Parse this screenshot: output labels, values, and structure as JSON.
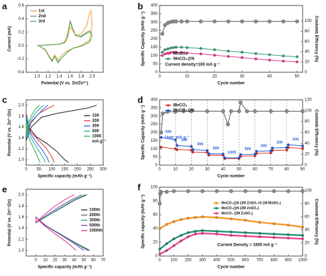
{
  "chart_data": [
    {
      "type": "line",
      "panel": "a",
      "xlabel": "Potential (V vs. Zn/Zn²⁺)",
      "ylabel": "Current (mA)",
      "xlim": [
        0.8,
        2.2
      ],
      "xticks": [
        {
          "value": 1.0,
          "label": "1.0"
        },
        1.2,
        1.4,
        1.6,
        1.8,
        {
          "value": 2.0,
          "label": "2.0"
        }
      ],
      "ylim": [
        -0.4,
        0.6
      ],
      "yticks": [
        -0.4,
        -0.2,
        {
          "value": 0,
          "label": "0.0"
        },
        0.2,
        0.4,
        0.6
      ],
      "series": [
        {
          "name": "1st",
          "color": "#f39c34",
          "x": [
            1.0,
            1.2,
            1.4,
            1.5,
            1.55,
            1.6,
            1.65,
            1.7,
            1.8,
            1.9,
            1.95,
            1.98,
            2.0,
            1.95,
            1.8,
            1.65,
            1.55,
            1.45,
            1.38,
            1.32,
            1.27,
            1.22,
            1.15,
            1.05,
            1.0
          ],
          "values": [
            0,
            0.01,
            0.02,
            0.04,
            0.1,
            0.28,
            0.22,
            0.16,
            0.17,
            0.3,
            0.48,
            0.52,
            0.3,
            0.08,
            0,
            -0.04,
            -0.08,
            -0.14,
            -0.22,
            -0.14,
            -0.22,
            -0.16,
            -0.06,
            -0.01,
            0
          ]
        },
        {
          "name": "2nd",
          "color": "#7f7f7f",
          "x": [
            1.0,
            1.2,
            1.4,
            1.5,
            1.55,
            1.6,
            1.65,
            1.7,
            1.8,
            1.9,
            1.95,
            1.98,
            2.0,
            1.95,
            1.8,
            1.65,
            1.55,
            1.45,
            1.38,
            1.32,
            1.27,
            1.22,
            1.15,
            1.05,
            1.0
          ],
          "values": [
            0,
            0.01,
            0.02,
            0.05,
            0.15,
            0.37,
            0.25,
            0.15,
            0.14,
            0.2,
            0.22,
            0.2,
            0.15,
            0.05,
            -0.01,
            -0.04,
            -0.1,
            -0.18,
            -0.26,
            -0.16,
            -0.24,
            -0.17,
            -0.07,
            -0.01,
            0
          ]
        },
        {
          "name": "3rd",
          "color": "#4caf50",
          "x": [
            1.0,
            1.2,
            1.4,
            1.5,
            1.55,
            1.6,
            1.65,
            1.7,
            1.8,
            1.9,
            1.95,
            1.98,
            2.0,
            1.95,
            1.8,
            1.65,
            1.55,
            1.45,
            1.38,
            1.32,
            1.27,
            1.22,
            1.15,
            1.05,
            1.0
          ],
          "values": [
            0,
            0.01,
            0.02,
            0.05,
            0.16,
            0.35,
            0.24,
            0.15,
            0.13,
            0.18,
            0.2,
            0.19,
            0.15,
            0.05,
            -0.01,
            -0.04,
            -0.1,
            -0.18,
            -0.25,
            -0.16,
            -0.23,
            -0.17,
            -0.07,
            -0.01,
            0
          ]
        }
      ]
    },
    {
      "type": "line",
      "panel": "b",
      "xlabel": "Cycle number",
      "ylabel": "Specific Capacity (mAh g⁻¹)",
      "y2label": "Coulomb Efficiency (%)",
      "annotation": "Current density=100 mA g⁻¹",
      "xlim": [
        0,
        52
      ],
      "xticks": [
        0,
        10,
        20,
        30,
        40,
        50
      ],
      "ylim": [
        0,
        400
      ],
      "yticks": [
        0,
        50,
        100,
        150,
        200,
        250,
        300,
        350,
        400
      ],
      "y2lim": [
        0,
        130
      ],
      "y2ticks": [
        0,
        20,
        40,
        60,
        80,
        100
      ],
      "x": [
        1,
        2,
        3,
        4,
        5,
        6,
        8,
        10,
        15,
        20,
        25,
        30,
        35,
        40,
        45,
        50
      ],
      "series": [
        {
          "name": "MnCO₃",
          "color": "#e8338a",
          "values": [
            100,
            110,
            115,
            118,
            120,
            120,
            118,
            116,
            110,
            102,
            95,
            88,
            80,
            73,
            67,
            62
          ]
        },
        {
          "name": "MnCO₃@N",
          "color": "#2e9e7a",
          "values": [
            120,
            135,
            140,
            145,
            148,
            150,
            150,
            148,
            143,
            135,
            127,
            120,
            112,
            105,
            98,
            93
          ]
        },
        {
          "color": "#555555",
          "axis": "y2",
          "values": [
            75,
            92,
            96,
            98,
            99,
            99,
            99,
            99,
            99,
            99,
            99,
            99,
            99,
            99,
            99,
            99
          ]
        }
      ]
    },
    {
      "type": "line",
      "panel": "c",
      "xlabel": "Specific capacity (mAh g⁻¹)",
      "ylabel": "Potential (V vs. Zn²⁺/Zn)",
      "legend_unit": "mA g⁻¹",
      "xlim": [
        0,
        300
      ],
      "xticks": [
        0,
        50,
        100,
        150,
        200,
        250,
        300
      ],
      "ylim": [
        0.9,
        2.1
      ],
      "yticks": [
        {
          "value": 1.0,
          "label": "1.0"
        },
        1.2,
        1.4,
        1.6,
        1.8,
        {
          "value": 2.0,
          "label": "2.0"
        }
      ],
      "series": [
        {
          "name": "100",
          "color": "#222222",
          "x": [
            165,
            150,
            120,
            80,
            40,
            10,
            0,
            0,
            20,
            60,
            120,
            180,
            240,
            275
          ],
          "values": [
            0.95,
            1.0,
            1.15,
            1.3,
            1.42,
            1.6,
            1.85,
            1.35,
            1.6,
            1.78,
            1.85,
            1.9,
            1.95,
            2.0
          ]
        },
        {
          "name": "200",
          "color": "#e0302a",
          "x": [
            110,
            100,
            80,
            50,
            20,
            5,
            0,
            0,
            20,
            50,
            80,
            110
          ],
          "values": [
            0.95,
            1.05,
            1.2,
            1.35,
            1.5,
            1.65,
            1.85,
            1.4,
            1.7,
            1.85,
            1.93,
            2.0
          ]
        },
        {
          "name": "300",
          "color": "#2a5ad8",
          "x": [
            90,
            80,
            60,
            35,
            15,
            0,
            0,
            15,
            40,
            65,
            85
          ],
          "values": [
            0.95,
            1.05,
            1.2,
            1.35,
            1.5,
            1.8,
            1.4,
            1.65,
            1.8,
            1.92,
            2.0
          ]
        },
        {
          "name": "500",
          "color": "#1aa3a3",
          "x": [
            75,
            65,
            45,
            25,
            10,
            0,
            0,
            15,
            35,
            55,
            70
          ],
          "values": [
            0.95,
            1.05,
            1.2,
            1.35,
            1.5,
            1.75,
            1.45,
            1.7,
            1.85,
            1.95,
            2.0
          ]
        },
        {
          "name": "1000",
          "color": "#3cae3c",
          "x": [
            55,
            45,
            30,
            15,
            5,
            0,
            0,
            10,
            25,
            40,
            52
          ],
          "values": [
            0.95,
            1.05,
            1.2,
            1.35,
            1.5,
            1.7,
            1.5,
            1.7,
            1.85,
            1.95,
            2.0
          ]
        }
      ]
    },
    {
      "type": "line",
      "panel": "d",
      "xlabel": "Cycle number",
      "ylabel": "Specific Capacity (mAh g⁻¹)",
      "y2label": "Coulomb Efficiency (%)",
      "unit_note": "Unit: mA g⁻¹",
      "rate_labels": [
        "100",
        "200",
        "300",
        "500",
        "1000",
        "500",
        "300",
        "200",
        "100"
      ],
      "grid": "x-dashed",
      "xlim": [
        0,
        90
      ],
      "xticks": [
        0,
        10,
        20,
        30,
        40,
        50,
        60,
        70,
        80,
        90
      ],
      "ylim": [
        0,
        400
      ],
      "yticks": [
        0,
        50,
        100,
        150,
        200,
        250,
        300,
        350,
        400
      ],
      "y2lim": [
        0,
        120
      ],
      "y2ticks": [
        0,
        20,
        40,
        60,
        80,
        100,
        120
      ],
      "series": [
        {
          "name": "MnCO₃",
          "color": "#e0302a",
          "x": [
            1,
            10,
            11,
            20,
            21,
            30,
            31,
            40,
            41,
            50,
            51,
            60,
            61,
            70,
            71,
            80,
            81,
            90
          ],
          "values": [
            110,
            100,
            95,
            92,
            80,
            78,
            62,
            60,
            40,
            40,
            55,
            57,
            72,
            75,
            90,
            92,
            108,
            102
          ]
        },
        {
          "name": "MnCO₃@N",
          "color": "#2a5ad8",
          "x": [
            1,
            10,
            11,
            20,
            21,
            30,
            31,
            40,
            41,
            50,
            51,
            60,
            61,
            70,
            71,
            80,
            81,
            90
          ],
          "values": [
            170,
            155,
            120,
            115,
            95,
            90,
            70,
            68,
            45,
            45,
            65,
            67,
            85,
            88,
            105,
            108,
            125,
            118
          ]
        },
        {
          "color": "#555555",
          "axis": "y2",
          "x": [
            1,
            2,
            5,
            10,
            15,
            20,
            30,
            40,
            43,
            45,
            50,
            51,
            55,
            60,
            70,
            80,
            90
          ],
          "values": [
            60,
            95,
            98,
            98,
            99,
            99,
            99,
            99,
            75,
            99,
            99,
            115,
            99,
            99,
            99,
            99,
            99
          ]
        }
      ]
    },
    {
      "type": "line",
      "panel": "e",
      "xlabel": "Specific capacity (mAh g⁻¹)",
      "ylabel": "Potential (V vs. Zn²⁺/Zn)",
      "xlim": [
        -10,
        70
      ],
      "xticks": [
        0,
        10,
        20,
        30,
        40,
        50,
        60,
        70
      ],
      "ylim": [
        0.9,
        2.1
      ],
      "yticks": [
        {
          "value": 1.0,
          "label": "1.0"
        },
        1.2,
        1.4,
        1.6,
        1.8,
        {
          "value": 2.0,
          "label": "2.0"
        }
      ],
      "series": [
        {
          "name": "100th",
          "color": "#222222",
          "x": [
            56,
            40,
            25,
            10,
            0,
            0,
            10,
            25,
            40,
            53
          ],
          "values": [
            1.0,
            1.15,
            1.3,
            1.45,
            1.6,
            1.5,
            1.6,
            1.75,
            1.9,
            2.0
          ]
        },
        {
          "name": "200th",
          "color": "#666666",
          "x": [
            55,
            40,
            25,
            10,
            0,
            0,
            10,
            25,
            40,
            52
          ],
          "values": [
            1.0,
            1.15,
            1.3,
            1.45,
            1.6,
            1.5,
            1.6,
            1.75,
            1.9,
            2.0
          ]
        },
        {
          "name": "300th",
          "color": "#2a9d8f",
          "x": [
            54,
            40,
            25,
            10,
            0,
            0,
            10,
            25,
            40,
            51
          ],
          "values": [
            1.0,
            1.14,
            1.3,
            1.45,
            1.6,
            1.5,
            1.6,
            1.76,
            1.91,
            2.0
          ]
        },
        {
          "name": "500th",
          "color": "#6a3d9a",
          "x": [
            50,
            38,
            24,
            10,
            0,
            0,
            10,
            24,
            38,
            48
          ],
          "values": [
            1.0,
            1.15,
            1.3,
            1.45,
            1.6,
            1.5,
            1.62,
            1.78,
            1.92,
            2.0
          ]
        },
        {
          "name": "1000th",
          "color": "#d63384",
          "x": [
            42,
            32,
            20,
            8,
            0,
            0,
            8,
            20,
            32,
            40
          ],
          "values": [
            1.0,
            1.15,
            1.3,
            1.46,
            1.6,
            1.5,
            1.63,
            1.8,
            1.93,
            2.0
          ]
        }
      ]
    },
    {
      "type": "line",
      "panel": "f",
      "xlabel": "Cycle number",
      "ylabel": "Specific capacity (mAh g⁻¹)",
      "y2label": "Coulomb Efficiency (%)",
      "annotation": "Current Density = 1000 mA g⁻¹",
      "xlim": [
        0,
        1000
      ],
      "xticks": [
        0,
        100,
        200,
        300,
        400,
        500,
        600,
        700,
        800,
        900,
        1000
      ],
      "ylim": [
        0,
        100
      ],
      "yticks": [
        0,
        20,
        40,
        60,
        80,
        100
      ],
      "y2lim": [
        0,
        105
      ],
      "y2ticks": [
        0,
        20,
        40,
        60,
        80,
        100
      ],
      "series": [
        {
          "name": "MnCO₃@N (2M ZnSO₄+0.1M MnSO₄)",
          "color": "#f7931e",
          "x": [
            1,
            50,
            100,
            150,
            200,
            250,
            300,
            400,
            500,
            600,
            700,
            800,
            900,
            1000
          ],
          "values": [
            40,
            46,
            50,
            53,
            55,
            56,
            57,
            56,
            54,
            52,
            49,
            47,
            45,
            42
          ]
        },
        {
          "name": "MnCO₃@N (2M ZnSO₄)",
          "color": "#1f8a70",
          "x": [
            1,
            50,
            100,
            150,
            200,
            250,
            300,
            400,
            500,
            600,
            700,
            800,
            900,
            1000
          ],
          "values": [
            10,
            18,
            25,
            30,
            34,
            36,
            37,
            36,
            35,
            34,
            33,
            32,
            31,
            30
          ]
        },
        {
          "name": "MnCO₃ (2M ZnSO₄)",
          "color": "#e83e8c",
          "x": [
            1,
            50,
            100,
            150,
            200,
            250,
            300,
            400,
            500,
            600,
            700,
            800,
            900,
            1000
          ],
          "values": [
            3,
            8,
            15,
            22,
            28,
            32,
            33,
            32,
            30,
            29,
            28,
            27,
            26,
            25
          ]
        },
        {
          "color": "#555555",
          "axis": "y2",
          "x": [
            1,
            5,
            10,
            50,
            100,
            200,
            300,
            400,
            500,
            600,
            700,
            800,
            900,
            1000
          ],
          "values": [
            80,
            95,
            98,
            98,
            99,
            99,
            99,
            99,
            99,
            99,
            99,
            99,
            99,
            99
          ]
        }
      ]
    }
  ]
}
